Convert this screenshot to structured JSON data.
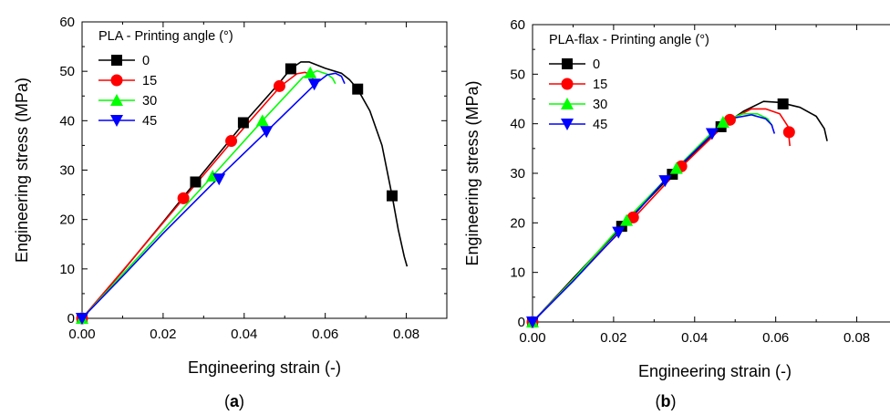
{
  "chart_data": [
    {
      "id": "a",
      "type": "line",
      "panel_label": "(a)",
      "xlabel": "Engineering strain (-)",
      "ylabel": "Engineering stress (MPa)",
      "xlim": [
        0.0,
        0.09
      ],
      "ylim": [
        0,
        60
      ],
      "xticks": [
        "0.00",
        "0.02",
        "0.04",
        "0.06",
        "0.08"
      ],
      "yticks": [
        "0",
        "10",
        "20",
        "30",
        "40",
        "50",
        "60"
      ],
      "legend_title": "PLA - Printing angle (°)",
      "legend_position": "top-left",
      "series": [
        {
          "name": "0",
          "color": "#000000",
          "marker": "square",
          "curve": [
            [
              0,
              0
            ],
            [
              0.01,
              9.5
            ],
            [
              0.02,
              19.5
            ],
            [
              0.028,
              27.6
            ],
            [
              0.04,
              39.6
            ],
            [
              0.048,
              47
            ],
            [
              0.0515,
              50.5
            ],
            [
              0.054,
              51.9
            ],
            [
              0.056,
              51.9
            ],
            [
              0.06,
              50.6
            ],
            [
              0.064,
              49.6
            ],
            [
              0.066,
              48.3
            ],
            [
              0.068,
              46.4
            ],
            [
              0.071,
              42
            ],
            [
              0.074,
              35
            ],
            [
              0.0765,
              24.8
            ],
            [
              0.078,
              18
            ],
            [
              0.0795,
              12.5
            ],
            [
              0.0802,
              10.5
            ]
          ],
          "markers": [
            [
              0,
              0
            ],
            [
              0.028,
              27.6
            ],
            [
              0.0398,
              39.6
            ],
            [
              0.0515,
              50.5
            ],
            [
              0.068,
              46.4
            ],
            [
              0.0765,
              24.8
            ]
          ]
        },
        {
          "name": "15",
          "color": "#ff0000",
          "marker": "circle",
          "curve": [
            [
              0,
              0
            ],
            [
              0.01,
              9.6
            ],
            [
              0.025,
              24.2
            ],
            [
              0.037,
              35.8
            ],
            [
              0.049,
              47
            ],
            [
              0.053,
              49.5
            ],
            [
              0.055,
              49.8
            ],
            [
              0.0565,
              49.3
            ],
            [
              0.0573,
              47.8
            ]
          ],
          "markers": [
            [
              0,
              0
            ],
            [
              0.025,
              24.3
            ],
            [
              0.0368,
              35.9
            ],
            [
              0.0487,
              47
            ]
          ]
        },
        {
          "name": "30",
          "color": "#00ff00",
          "marker": "triangle-up",
          "curve": [
            [
              0,
              0
            ],
            [
              0.01,
              8.9
            ],
            [
              0.0322,
              28.8
            ],
            [
              0.0445,
              40
            ],
            [
              0.0545,
              48.8
            ],
            [
              0.058,
              50.1
            ],
            [
              0.0605,
              49.4
            ],
            [
              0.0618,
              48.6
            ],
            [
              0.0625,
              47.5
            ]
          ],
          "markers": [
            [
              0,
              0
            ],
            [
              0.0322,
              28.8
            ],
            [
              0.0445,
              40
            ],
            [
              0.0563,
              49.7
            ]
          ]
        },
        {
          "name": "45",
          "color": "#0000ff",
          "marker": "triangle-down",
          "curve": [
            [
              0,
              0
            ],
            [
              0.01,
              8.5
            ],
            [
              0.02,
              17.2
            ],
            [
              0.0335,
              28.3
            ],
            [
              0.0455,
              37.8
            ],
            [
              0.0575,
              47.4
            ],
            [
              0.0605,
              49.3
            ],
            [
              0.0625,
              49.6
            ],
            [
              0.064,
              49
            ],
            [
              0.0648,
              47.5
            ]
          ],
          "markers": [
            [
              0,
              0
            ],
            [
              0.0338,
              28.2
            ],
            [
              0.0455,
              37.8
            ],
            [
              0.0573,
              47.4
            ]
          ]
        }
      ]
    },
    {
      "id": "b",
      "type": "line",
      "panel_label": "(b)",
      "xlabel": "Engineering strain (-)",
      "ylabel": "Engineering stress (MPa)",
      "xlim": [
        0.0,
        0.09
      ],
      "ylim": [
        0,
        60
      ],
      "xticks": [
        "0.00",
        "0.02",
        "0.04",
        "0.06",
        "0.08"
      ],
      "yticks": [
        "0",
        "10",
        "20",
        "30",
        "40",
        "50",
        "60"
      ],
      "legend_title": "PLA-flax - Printing angle (°)",
      "legend_position": "top-left",
      "series": [
        {
          "name": "0",
          "color": "#000000",
          "marker": "square",
          "curve": [
            [
              0,
              0
            ],
            [
              0.01,
              8.8
            ],
            [
              0.022,
              19.2
            ],
            [
              0.0345,
              29.8
            ],
            [
              0.0465,
              39.4
            ],
            [
              0.052,
              42.5
            ],
            [
              0.057,
              44.5
            ],
            [
              0.061,
              44.3
            ],
            [
              0.066,
              43.3
            ],
            [
              0.07,
              41.5
            ],
            [
              0.072,
              39
            ],
            [
              0.0727,
              36.5
            ]
          ],
          "markers": [
            [
              0,
              0
            ],
            [
              0.022,
              19.3
            ],
            [
              0.0345,
              29.8
            ],
            [
              0.0465,
              39.4
            ],
            [
              0.0618,
              44
            ]
          ]
        },
        {
          "name": "15",
          "color": "#ff0000",
          "marker": "circle",
          "curve": [
            [
              0,
              0
            ],
            [
              0.01,
              8.6
            ],
            [
              0.025,
              21
            ],
            [
              0.037,
              31.5
            ],
            [
              0.0487,
              40.8
            ],
            [
              0.054,
              43
            ],
            [
              0.0575,
              43
            ],
            [
              0.061,
              42
            ],
            [
              0.063,
              39.5
            ],
            [
              0.0635,
              35.5
            ]
          ],
          "markers": [
            [
              0,
              0
            ],
            [
              0.0248,
              21.1
            ],
            [
              0.0367,
              31.4
            ],
            [
              0.0487,
              40.8
            ],
            [
              0.0633,
              38.3
            ]
          ]
        },
        {
          "name": "30",
          "color": "#00ff00",
          "marker": "triangle-up",
          "curve": [
            [
              0,
              0
            ],
            [
              0.01,
              8.5
            ],
            [
              0.023,
              20.5
            ],
            [
              0.0355,
              31
            ],
            [
              0.047,
              40.5
            ],
            [
              0.052,
              42
            ],
            [
              0.0555,
              42
            ],
            [
              0.058,
              41
            ],
            [
              0.0592,
              39.5
            ]
          ],
          "markers": [
            [
              0,
              0
            ],
            [
              0.0232,
              20.5
            ],
            [
              0.0355,
              31
            ],
            [
              0.047,
              40.3
            ]
          ]
        },
        {
          "name": "45",
          "color": "#0000ff",
          "marker": "triangle-down",
          "curve": [
            [
              0,
              0
            ],
            [
              0.01,
              8.2
            ],
            [
              0.021,
              17.8
            ],
            [
              0.0325,
              28.5
            ],
            [
              0.0445,
              38
            ],
            [
              0.05,
              41.2
            ],
            [
              0.054,
              41.8
            ],
            [
              0.0575,
              41
            ],
            [
              0.059,
              39.8
            ],
            [
              0.0597,
              38
            ]
          ],
          "markers": [
            [
              0,
              0
            ],
            [
              0.0212,
              18.1
            ],
            [
              0.0327,
              28.5
            ],
            [
              0.0443,
              38
            ]
          ]
        }
      ]
    }
  ]
}
